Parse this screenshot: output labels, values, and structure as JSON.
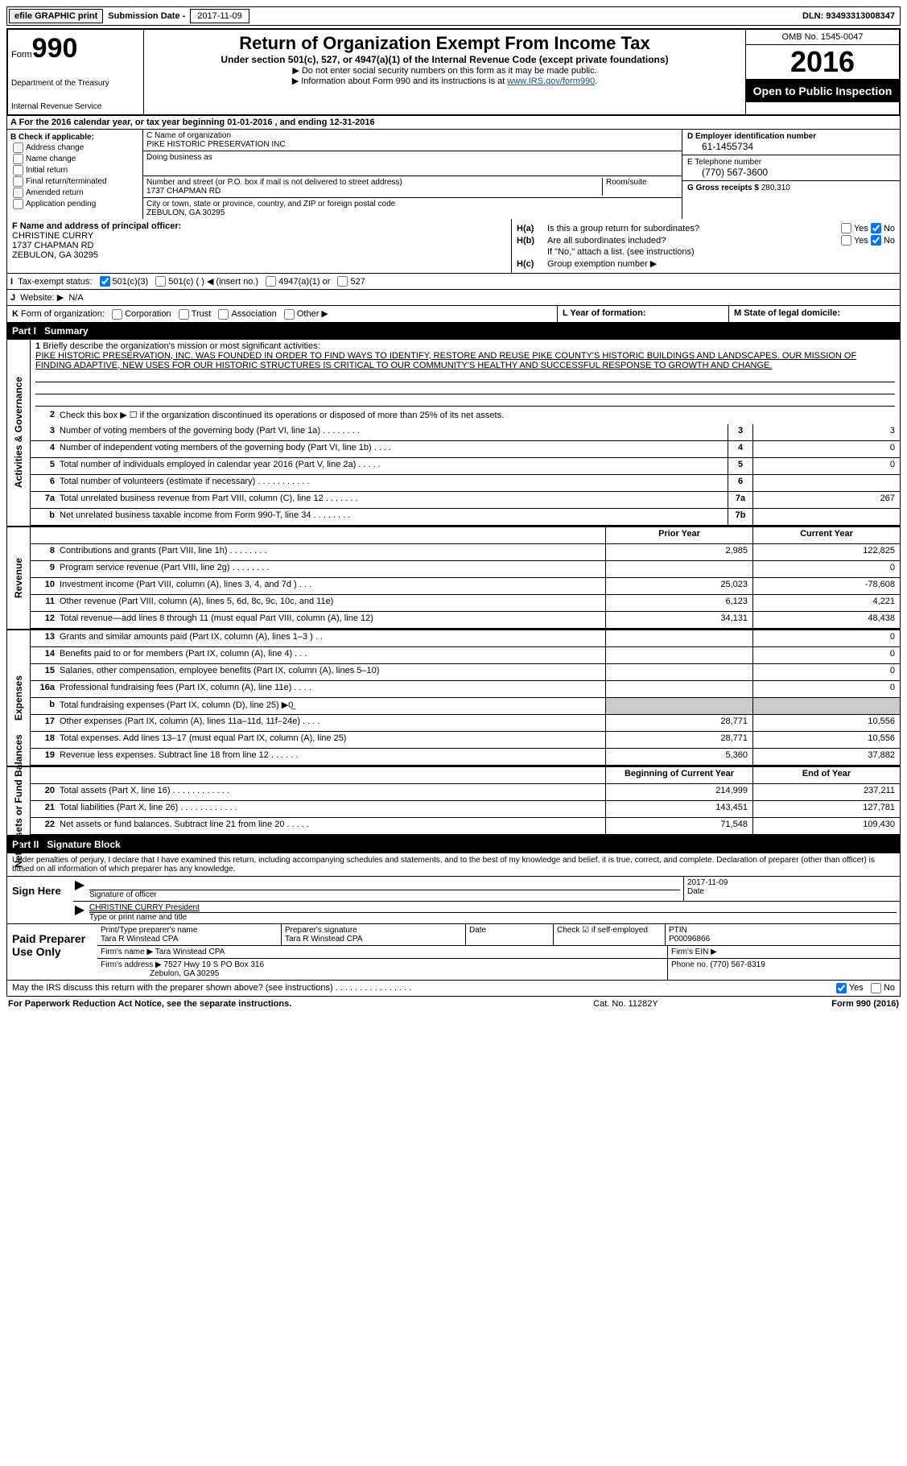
{
  "top": {
    "efile": "efile GRAPHIC print",
    "sub_label": "Submission Date -",
    "sub_date": "2017-11-09",
    "dln": "DLN: 93493313008347"
  },
  "header": {
    "form": "Form",
    "n990": "990",
    "dept1": "Department of the Treasury",
    "dept2": "Internal Revenue Service",
    "title": "Return of Organization Exempt From Income Tax",
    "sub": "Under section 501(c), 527, or 4947(a)(1) of the Internal Revenue Code (except private foundations)",
    "note1": "▶ Do not enter social security numbers on this form as it may be made public.",
    "note2": "▶ Information about Form 990 and its instructions is at ",
    "link": "www.IRS.gov/form990",
    "omb": "OMB No. 1545-0047",
    "year": "2016",
    "open": "Open to Public Inspection"
  },
  "rowA": "A   For the 2016 calendar year, or tax year beginning 01-01-2016    , and ending 12-31-2016",
  "B": {
    "title": "B Check if applicable:",
    "items": [
      "Address change",
      "Name change",
      "Initial return",
      "Final return/terminated",
      "Amended return",
      "Application pending"
    ]
  },
  "C": {
    "name_lbl": "C Name of organization",
    "name": "PIKE HISTORIC PRESERVATION INC",
    "dba_lbl": "Doing business as",
    "street_lbl": "Number and street (or P.O. box if mail is not delivered to street address)",
    "room_lbl": "Room/suite",
    "street": "1737 CHAPMAN RD",
    "city_lbl": "City or town, state or province, country, and ZIP or foreign postal code",
    "city": "ZEBULON, GA  30295"
  },
  "D": {
    "ein_lbl": "D Employer identification number",
    "ein": "61-1455734",
    "tel_lbl": "E Telephone number",
    "tel": "(770) 567-3600",
    "gross_lbl": "G Gross receipts $",
    "gross": "280,310"
  },
  "F": {
    "lbl": "F  Name and address of principal officer:",
    "name": "CHRISTINE CURRY",
    "addr1": "1737 CHAPMAN RD",
    "addr2": "ZEBULON, GA  30295"
  },
  "H": {
    "a_lbl": "H(a)",
    "a_txt": "Is this a group return for subordinates?",
    "b_lbl": "H(b)",
    "b_txt": "Are all subordinates included?",
    "b_note": "If \"No,\" attach a list. (see instructions)",
    "c_lbl": "H(c)",
    "c_txt": "Group exemption number ▶",
    "yes": "Yes",
    "no": "No"
  },
  "I": {
    "lbl": "I",
    "txt": "Tax-exempt status:",
    "o1": "501(c)(3)",
    "o2": "501(c) (   ) ◀ (insert no.)",
    "o3": "4947(a)(1) or",
    "o4": "527"
  },
  "J": {
    "lbl": "J",
    "txt": "Website: ▶",
    "val": "N/A"
  },
  "K": {
    "lbl": "K",
    "txt": "Form of organization:",
    "o1": "Corporation",
    "o2": "Trust",
    "o3": "Association",
    "o4": "Other ▶"
  },
  "L": "L Year of formation:",
  "M": "M State of legal domicile:",
  "part1": {
    "hdr": "Part I",
    "title": "Summary"
  },
  "sideLabels": {
    "ag": "Activities & Governance",
    "rev": "Revenue",
    "exp": "Expenses",
    "net": "Net Assets or Fund Balances"
  },
  "p1": {
    "l1_lbl": "1",
    "l1_txt": "Briefly describe the organization's mission or most significant activities:",
    "mission": "PIKE HISTORIC PRESERVATION, INC. WAS FOUNDED IN ORDER TO FIND WAYS TO IDENTIFY, RESTORE AND REUSE PIKE COUNTY'S HISTORIC BUILDINGS AND LANDSCAPES. OUR MISSION OF FINDING ADAPTIVE, NEW USES FOR OUR HISTORIC STRUCTURES IS CRITICAL TO OUR COMMUNITY'S HEALTHY AND SUCCESSFUL RESPONSE TO GROWTH AND CHANGE.",
    "l2": "Check this box ▶ ☐  if the organization discontinued its operations or disposed of more than 25% of its net assets.",
    "rows": [
      {
        "n": "3",
        "d": "Number of voting members of the governing body (Part VI, line 1a)   .   .   .   .   .   .   .   .",
        "b": "3",
        "v": "3"
      },
      {
        "n": "4",
        "d": "Number of independent voting members of the governing body (Part VI, line 1b)    .   .   .   .",
        "b": "4",
        "v": "0"
      },
      {
        "n": "5",
        "d": "Total number of individuals employed in calendar year 2016 (Part V, line 2a)   .   .   .   .   .",
        "b": "5",
        "v": "0"
      },
      {
        "n": "6",
        "d": "Total number of volunteers (estimate if necessary)   .   .   .   .   .   .   .   .   .   .   .",
        "b": "6",
        "v": ""
      },
      {
        "n": "7a",
        "d": "Total unrelated business revenue from Part VIII, column (C), line 12   .   .   .   .   .   .   .",
        "b": "7a",
        "v": "267"
      },
      {
        "n": "b",
        "d": "Net unrelated business taxable income from Form 990-T, line 34   .   .   .   .   .   .   .   .",
        "b": "7b",
        "v": ""
      }
    ],
    "hdr_prior": "Prior Year",
    "hdr_curr": "Current Year",
    "rev": [
      {
        "n": "8",
        "d": "Contributions and grants (Part VIII, line 1h)   .   .   .   .   .   .   .   .",
        "p": "2,985",
        "c": "122,825"
      },
      {
        "n": "9",
        "d": "Program service revenue (Part VIII, line 2g)   .   .   .   .   .   .   .   .",
        "p": "",
        "c": "0"
      },
      {
        "n": "10",
        "d": "Investment income (Part VIII, column (A), lines 3, 4, and 7d )   .   .   .",
        "p": "25,023",
        "c": "-78,608"
      },
      {
        "n": "11",
        "d": "Other revenue (Part VIII, column (A), lines 5, 6d, 8c, 9c, 10c, and 11e)",
        "p": "6,123",
        "c": "4,221"
      },
      {
        "n": "12",
        "d": "Total revenue—add lines 8 through 11 (must equal Part VIII, column (A), line 12)",
        "p": "34,131",
        "c": "48,438"
      }
    ],
    "exp": [
      {
        "n": "13",
        "d": "Grants and similar amounts paid (Part IX, column (A), lines 1–3 )  .   .",
        "p": "",
        "c": "0"
      },
      {
        "n": "14",
        "d": "Benefits paid to or for members (Part IX, column (A), line 4)   .   .   .",
        "p": "",
        "c": "0"
      },
      {
        "n": "15",
        "d": "Salaries, other compensation, employee benefits (Part IX, column (A), lines 5–10)",
        "p": "",
        "c": "0"
      },
      {
        "n": "16a",
        "d": "Professional fundraising fees (Part IX, column (A), line 11e)   .   .   .   .",
        "p": "",
        "c": "0"
      },
      {
        "n": "b",
        "d": "Total fundraising expenses (Part IX, column (D), line 25) ▶0̲",
        "p": "shade",
        "c": "shade"
      },
      {
        "n": "17",
        "d": "Other expenses (Part IX, column (A), lines 11a–11d, 11f–24e)   .   .   .   .",
        "p": "28,771",
        "c": "10,556"
      },
      {
        "n": "18",
        "d": "Total expenses. Add lines 13–17 (must equal Part IX, column (A), line 25)",
        "p": "28,771",
        "c": "10,556"
      },
      {
        "n": "19",
        "d": "Revenue less expenses. Subtract line 18 from line 12   .   .   .   .   .   .",
        "p": "5,360",
        "c": "37,882"
      }
    ],
    "hdr_beg": "Beginning of Current Year",
    "hdr_end": "End of Year",
    "net": [
      {
        "n": "20",
        "d": "Total assets (Part X, line 16)   .   .   .   .   .   .   .   .   .   .   .   .",
        "p": "214,999",
        "c": "237,211"
      },
      {
        "n": "21",
        "d": "Total liabilities (Part X, line 26)  .   .   .   .   .   .   .   .   .   .   .   .",
        "p": "143,451",
        "c": "127,781"
      },
      {
        "n": "22",
        "d": "Net assets or fund balances. Subtract line 21 from line 20 .   .   .   .   .",
        "p": "71,548",
        "c": "109,430"
      }
    ]
  },
  "part2": {
    "hdr": "Part II",
    "title": "Signature Block"
  },
  "sig": {
    "intro": "Under penalties of perjury, I declare that I have examined this return, including accompanying schedules and statements, and to the best of my knowledge and belief, it is true, correct, and complete. Declaration of preparer (other than officer) is based on all information of which preparer has any knowledge.",
    "sign_here": "Sign Here",
    "sig_lbl": "Signature of officer",
    "date_lbl": "Date",
    "date_val": "2017-11-09",
    "name": "CHRISTINE CURRY President",
    "name_lbl": "Type or print name and title"
  },
  "prep": {
    "title": "Paid Preparer Use Only",
    "pt_name_lbl": "Print/Type preparer's name",
    "pt_name": "Tara R Winstead CPA",
    "sig_lbl": "Preparer's signature",
    "sig": "Tara R Winstead CPA",
    "date_lbl": "Date",
    "check_lbl": "Check ☑ if self-employed",
    "ptin_lbl": "PTIN",
    "ptin": "P00096866",
    "firm_name_lbl": "Firm's name    ▶",
    "firm_name": "Tara Winstead CPA",
    "firm_ein_lbl": "Firm's EIN ▶",
    "firm_addr_lbl": "Firm's address ▶",
    "firm_addr1": "7527 Hwy 19 S PO Box 316",
    "firm_addr2": "Zebulon, GA  30295",
    "phone_lbl": "Phone no.",
    "phone": "(770) 567-8319"
  },
  "footer": {
    "q": "May the IRS discuss this return with the preparer shown above? (see instructions)   .   .   .   .   .   .   .   .   .   .   .   .   .   .   .   .",
    "yes": "Yes",
    "no": "No",
    "pra": "For Paperwork Reduction Act Notice, see the separate instructions.",
    "cat": "Cat. No. 11282Y",
    "form": "Form 990 (2016)"
  }
}
